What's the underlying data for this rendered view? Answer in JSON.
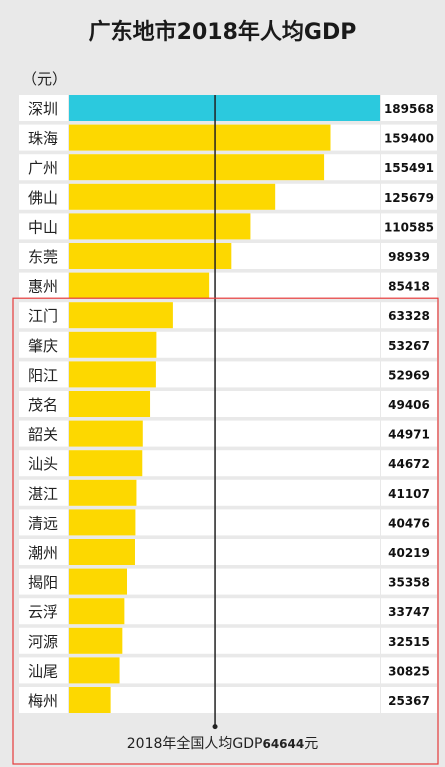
{
  "title": "广东地市2018年人均GDP",
  "unit_label": "（元）",
  "reference_text_prefix": "2018年全国人均GDP",
  "reference_text_value": "64644",
  "reference_text_suffix": "元",
  "colors": {
    "highlight": "#2bc9de",
    "bar": "#fdd800",
    "highlight_box": "#e63b3b",
    "track": "#ffffff",
    "background": "#e9e9e9"
  },
  "chart_data": {
    "type": "bar",
    "orientation": "horizontal",
    "categories": [
      "深圳",
      "珠海",
      "广州",
      "佛山",
      "中山",
      "东莞",
      "惠州",
      "江门",
      "肇庆",
      "阳江",
      "茂名",
      "韶关",
      "汕头",
      "湛江",
      "清远",
      "潮州",
      "揭阳",
      "云浮",
      "河源",
      "汕尾",
      "梅州"
    ],
    "values": [
      189568,
      159400,
      155491,
      125679,
      110585,
      98939,
      85418,
      63328,
      53267,
      52969,
      49406,
      44971,
      44672,
      41107,
      40476,
      40219,
      35358,
      33747,
      32515,
      30825,
      25367
    ],
    "value_labels": [
      "189568",
      "159400",
      "155491",
      "125679",
      "110585",
      "98939",
      "85418",
      "63328",
      "53267",
      "52969",
      "49406",
      "44971",
      "44672",
      "41107",
      "40476",
      "40219",
      "35358",
      "33747",
      "32515",
      "30825",
      "25367"
    ],
    "highlight_index": 0,
    "reference_line": 64644,
    "highlight_group": [
      "江门",
      "肇庆",
      "阳江",
      "茂名",
      "韶关",
      "汕头",
      "湛江",
      "清远",
      "潮州",
      "揭阳",
      "云浮",
      "河源",
      "汕尾",
      "梅州"
    ],
    "xlim": [
      0,
      189568
    ]
  }
}
